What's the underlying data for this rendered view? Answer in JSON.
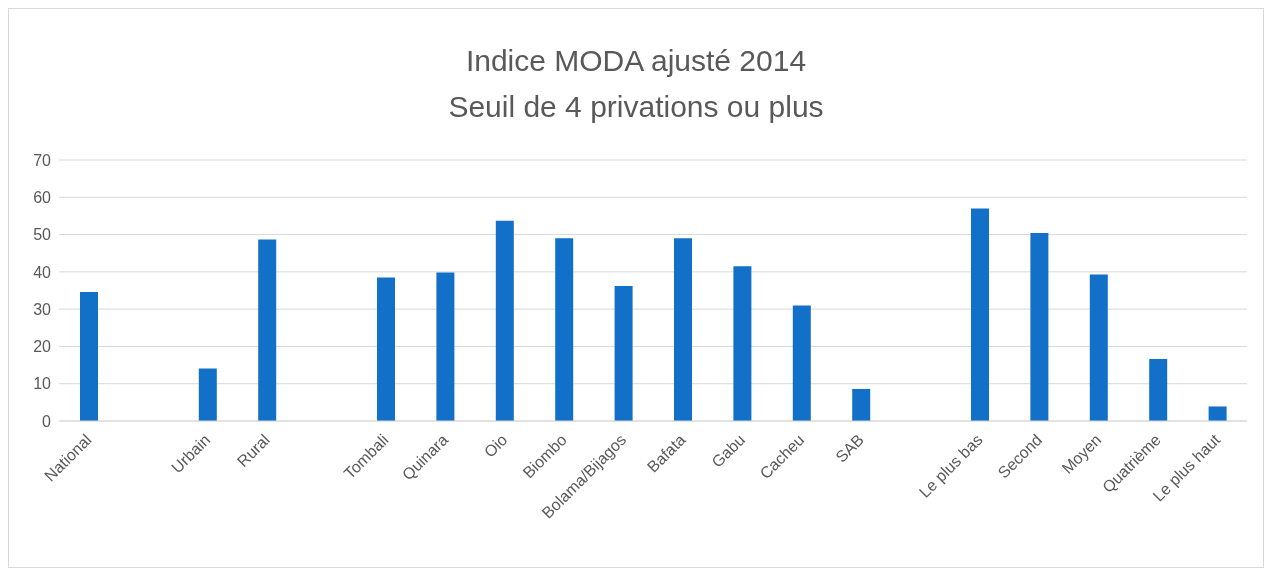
{
  "chart_data": {
    "type": "bar",
    "title": "Indice MODA ajusté 2014",
    "subtitle": "Seuil de 4 privations ou plus",
    "categories": [
      "National",
      null,
      "Urbain",
      "Rural",
      null,
      "Tombali",
      "Quinara",
      "Oio",
      "Biombo",
      "Bolama/Bijagos",
      "Bafata",
      "Gabu",
      "Cacheu",
      "SAB",
      null,
      "Le plus bas",
      "Second",
      "Moyen",
      "Quatrième",
      "Le plus haut"
    ],
    "values": [
      34.6,
      null,
      14.1,
      48.7,
      null,
      38.5,
      39.8,
      53.7,
      49,
      36.2,
      49,
      41.5,
      31,
      8.6,
      null,
      57,
      50.4,
      39.3,
      16.6,
      3.9
    ],
    "color": "#1270c8",
    "ylim": [
      0,
      70
    ],
    "yticks": [
      0,
      10,
      20,
      30,
      40,
      50,
      60,
      70
    ],
    "grid": "y"
  }
}
